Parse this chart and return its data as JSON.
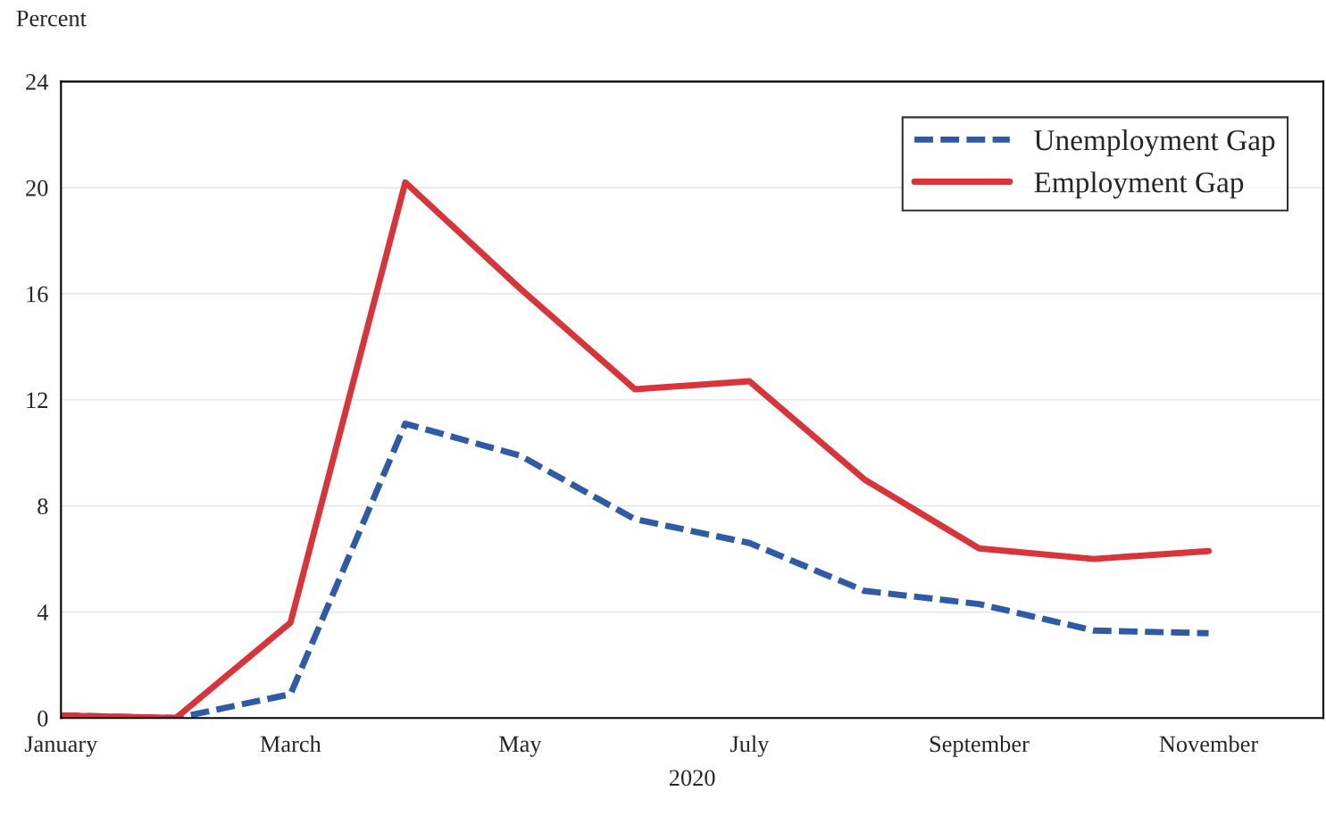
{
  "chart_data": {
    "type": "line",
    "ylabel": "Percent",
    "xlabel": "2020",
    "categories": [
      "January",
      null,
      "March",
      null,
      "May",
      null,
      "July",
      null,
      "September",
      null,
      "November",
      null
    ],
    "series": [
      {
        "name": "Unemployment Gap",
        "color": "#2e5aa8",
        "line_style": "dashed",
        "values": [
          0.1,
          0,
          0.9,
          11.1,
          9.9,
          7.5,
          6.6,
          4.8,
          4.3,
          3.3,
          3.2,
          null
        ]
      },
      {
        "name": "Employment Gap",
        "color": "#d9343a",
        "line_style": "solid",
        "values": [
          0.1,
          0,
          3.6,
          20.2,
          16.2,
          12.4,
          12.7,
          9.0,
          6.4,
          6.0,
          6.3,
          null
        ]
      }
    ],
    "ylim": [
      0,
      24
    ],
    "yticks": [
      0,
      4,
      8,
      12,
      16,
      20,
      24
    ],
    "grid": "y",
    "legend": "top right",
    "marker": "none"
  }
}
